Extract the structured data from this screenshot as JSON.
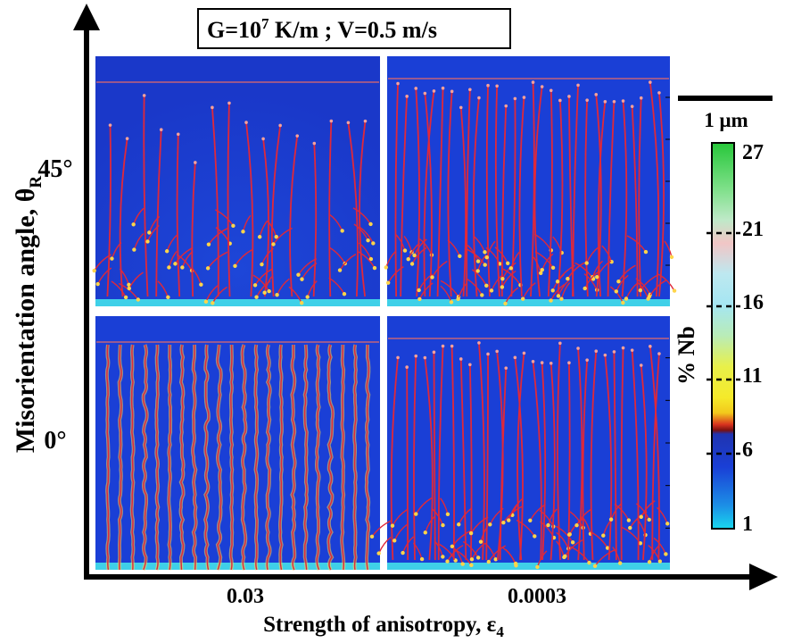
{
  "title_box": {
    "base": "G=10",
    "exp": "7",
    "rest": " K/m ; V=0.5 m/s"
  },
  "y_axis": {
    "label": "Misorientation  angle, θ",
    "sub": "R",
    "ticks": [
      "45°",
      "0°"
    ]
  },
  "x_axis": {
    "label": "Strength of anisotropy, ε",
    "sub": "4",
    "ticks": [
      "0.03",
      "0.0003"
    ]
  },
  "scale_bar": {
    "label": "1 μm"
  },
  "colorbar": {
    "label": "% Nb",
    "ticks": [
      "27",
      "21",
      "16",
      "11",
      "6",
      "1"
    ]
  },
  "panels": [
    {
      "id": "p45-003",
      "theta": "45°",
      "epsilon": "0.03"
    },
    {
      "id": "p45-00003",
      "theta": "45°",
      "epsilon": "0.0003"
    },
    {
      "id": "p0-003",
      "theta": "0°",
      "epsilon": "0.03"
    },
    {
      "id": "p0-00003",
      "theta": "0°",
      "epsilon": "0.0003"
    }
  ],
  "colors": {
    "background": "#1a3fd6",
    "cell_boundary": "#e0283a",
    "tip_highlight": "#ffd54a",
    "base_strip": "#3fd0e8"
  }
}
